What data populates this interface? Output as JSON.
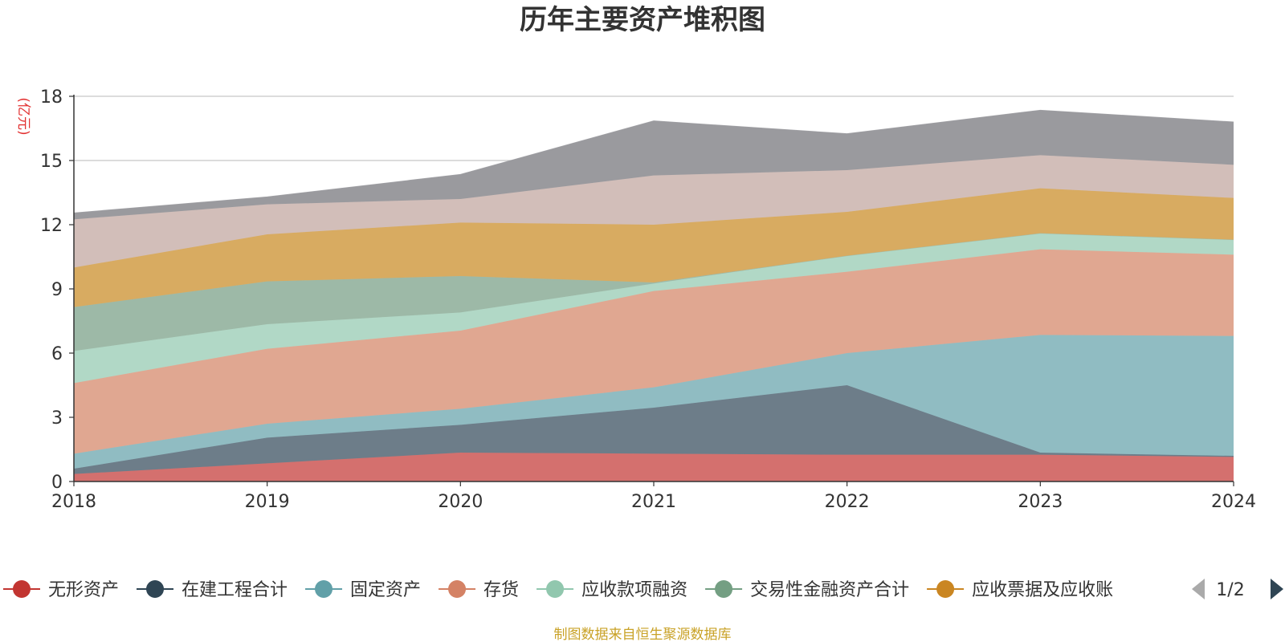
{
  "chart_data": {
    "type": "area",
    "stacked": true,
    "title": "历年主要资产堆积图",
    "ylabel": "(亿元)",
    "xlabel": "",
    "source_note": "制图数据来自恒生聚源数据库",
    "categories": [
      "2018",
      "2019",
      "2020",
      "2021",
      "2022",
      "2023",
      "2024"
    ],
    "ylim": [
      0,
      18
    ],
    "yticks": [
      0,
      3,
      6,
      9,
      12,
      15,
      18
    ],
    "grid": true,
    "legend_position": "bottom",
    "legend_page": "1/2",
    "series": [
      {
        "name": "无形资产",
        "color": "#c23531",
        "area_color": "#d4706e",
        "legend": true,
        "values": [
          0.35,
          0.85,
          1.35,
          1.3,
          1.25,
          1.25,
          1.15
        ]
      },
      {
        "name": "在建工程合计",
        "color": "#2f4554",
        "area_color": "#6d7d89",
        "legend": true,
        "values": [
          0.25,
          1.2,
          1.3,
          2.15,
          3.25,
          0.1,
          0.05
        ]
      },
      {
        "name": "固定资产",
        "color": "#61a0a8",
        "area_color": "#90bcc2",
        "legend": true,
        "values": [
          0.7,
          0.65,
          0.75,
          0.95,
          1.5,
          5.5,
          5.6
        ]
      },
      {
        "name": "存货",
        "color": "#d48265",
        "area_color": "#e0a791",
        "legend": true,
        "values": [
          3.3,
          3.5,
          3.65,
          4.5,
          3.8,
          4.0,
          3.8
        ]
      },
      {
        "name": "应收款项融资",
        "color": "#91c7ae",
        "area_color": "#b1d8c6",
        "legend": true,
        "values": [
          1.5,
          1.15,
          0.85,
          0.35,
          0.75,
          0.75,
          0.7
        ]
      },
      {
        "name": "交易性金融资产合计",
        "color": "#749f83",
        "area_color": "#9db9a7",
        "legend": true,
        "values": [
          2.05,
          2.0,
          1.7,
          0.05,
          0.0,
          0.0,
          0.0
        ]
      },
      {
        "name": "应收票据及应收账",
        "color": "#ca8622",
        "area_color": "#d8ab61",
        "legend": true,
        "values": [
          1.85,
          2.2,
          2.5,
          2.7,
          2.05,
          2.1,
          1.95
        ]
      },
      {
        "name": "",
        "color": "#bda29a",
        "area_color": "#d2beb9",
        "legend": false,
        "values": [
          2.25,
          1.4,
          1.1,
          2.3,
          1.95,
          1.55,
          1.55
        ]
      },
      {
        "name": "",
        "color": "#6e7074",
        "area_color": "#9a9a9e",
        "legend": false,
        "values": [
          0.3,
          0.35,
          1.15,
          2.55,
          1.7,
          2.1,
          2.0
        ]
      }
    ]
  }
}
